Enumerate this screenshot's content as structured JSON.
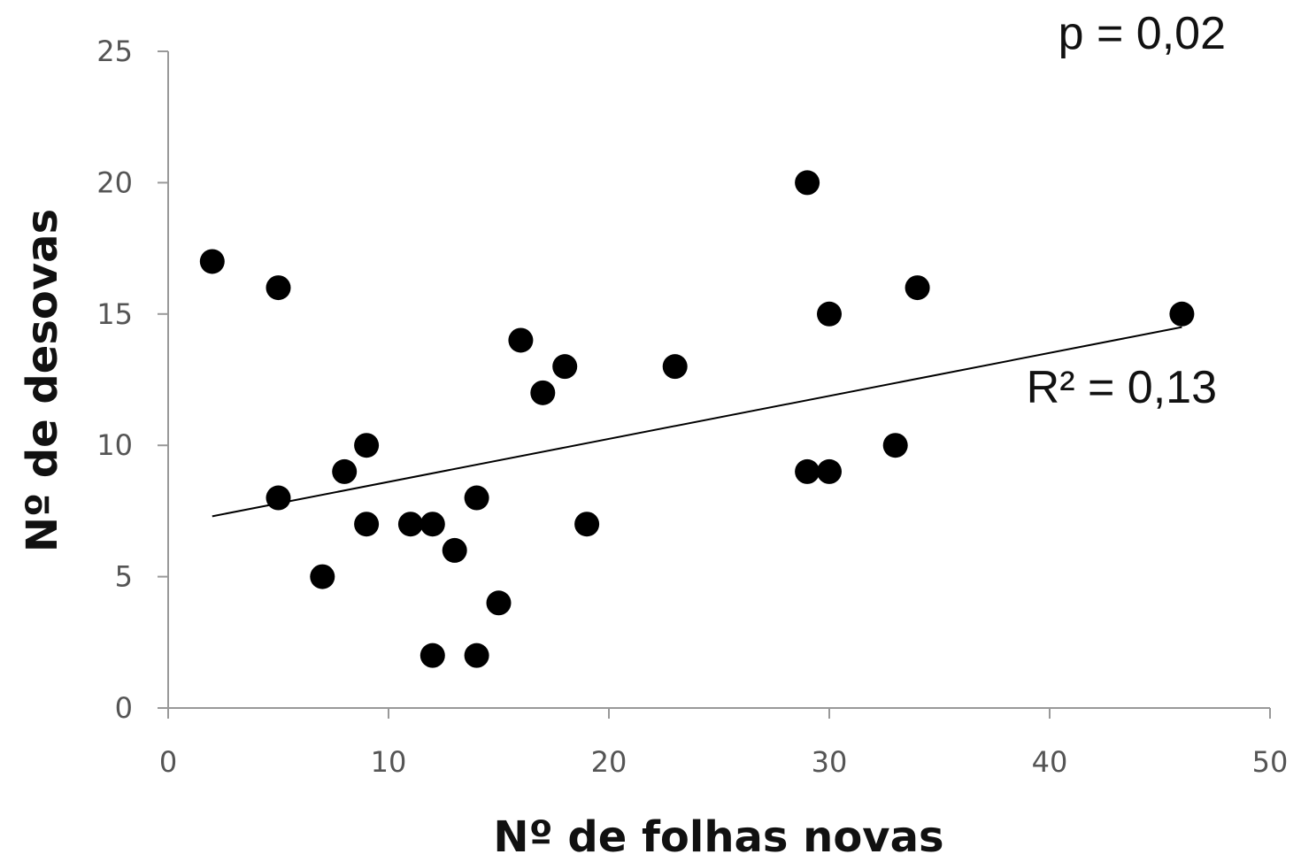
{
  "chart_data": {
    "type": "scatter",
    "xlabel": "Nº de folhas novas",
    "ylabel": "Nº de desovas",
    "xlim": [
      0,
      50
    ],
    "ylim": [
      0,
      25
    ],
    "xticks": [
      0,
      10,
      20,
      30,
      40,
      50
    ],
    "yticks": [
      0,
      5,
      10,
      15,
      20,
      25
    ],
    "grid": false,
    "points": [
      {
        "x": 2,
        "y": 17
      },
      {
        "x": 5,
        "y": 16
      },
      {
        "x": 5,
        "y": 8
      },
      {
        "x": 7,
        "y": 5
      },
      {
        "x": 8,
        "y": 9
      },
      {
        "x": 9,
        "y": 10
      },
      {
        "x": 9,
        "y": 7
      },
      {
        "x": 11,
        "y": 7
      },
      {
        "x": 12,
        "y": 7
      },
      {
        "x": 12,
        "y": 2
      },
      {
        "x": 13,
        "y": 6
      },
      {
        "x": 14,
        "y": 8
      },
      {
        "x": 14,
        "y": 2
      },
      {
        "x": 15,
        "y": 4
      },
      {
        "x": 16,
        "y": 14
      },
      {
        "x": 17,
        "y": 12
      },
      {
        "x": 18,
        "y": 13
      },
      {
        "x": 19,
        "y": 7
      },
      {
        "x": 23,
        "y": 13
      },
      {
        "x": 29,
        "y": 20
      },
      {
        "x": 29,
        "y": 9
      },
      {
        "x": 30,
        "y": 15
      },
      {
        "x": 30,
        "y": 9
      },
      {
        "x": 33,
        "y": 10
      },
      {
        "x": 34,
        "y": 16
      },
      {
        "x": 46,
        "y": 15
      }
    ],
    "trendline": {
      "type": "linear",
      "x": [
        2,
        46
      ],
      "y": [
        7.3,
        14.5
      ]
    },
    "annotations": {
      "p_value": "p = 0,02",
      "r_squared": "R² = 0,13"
    },
    "point_color": "#000000"
  }
}
